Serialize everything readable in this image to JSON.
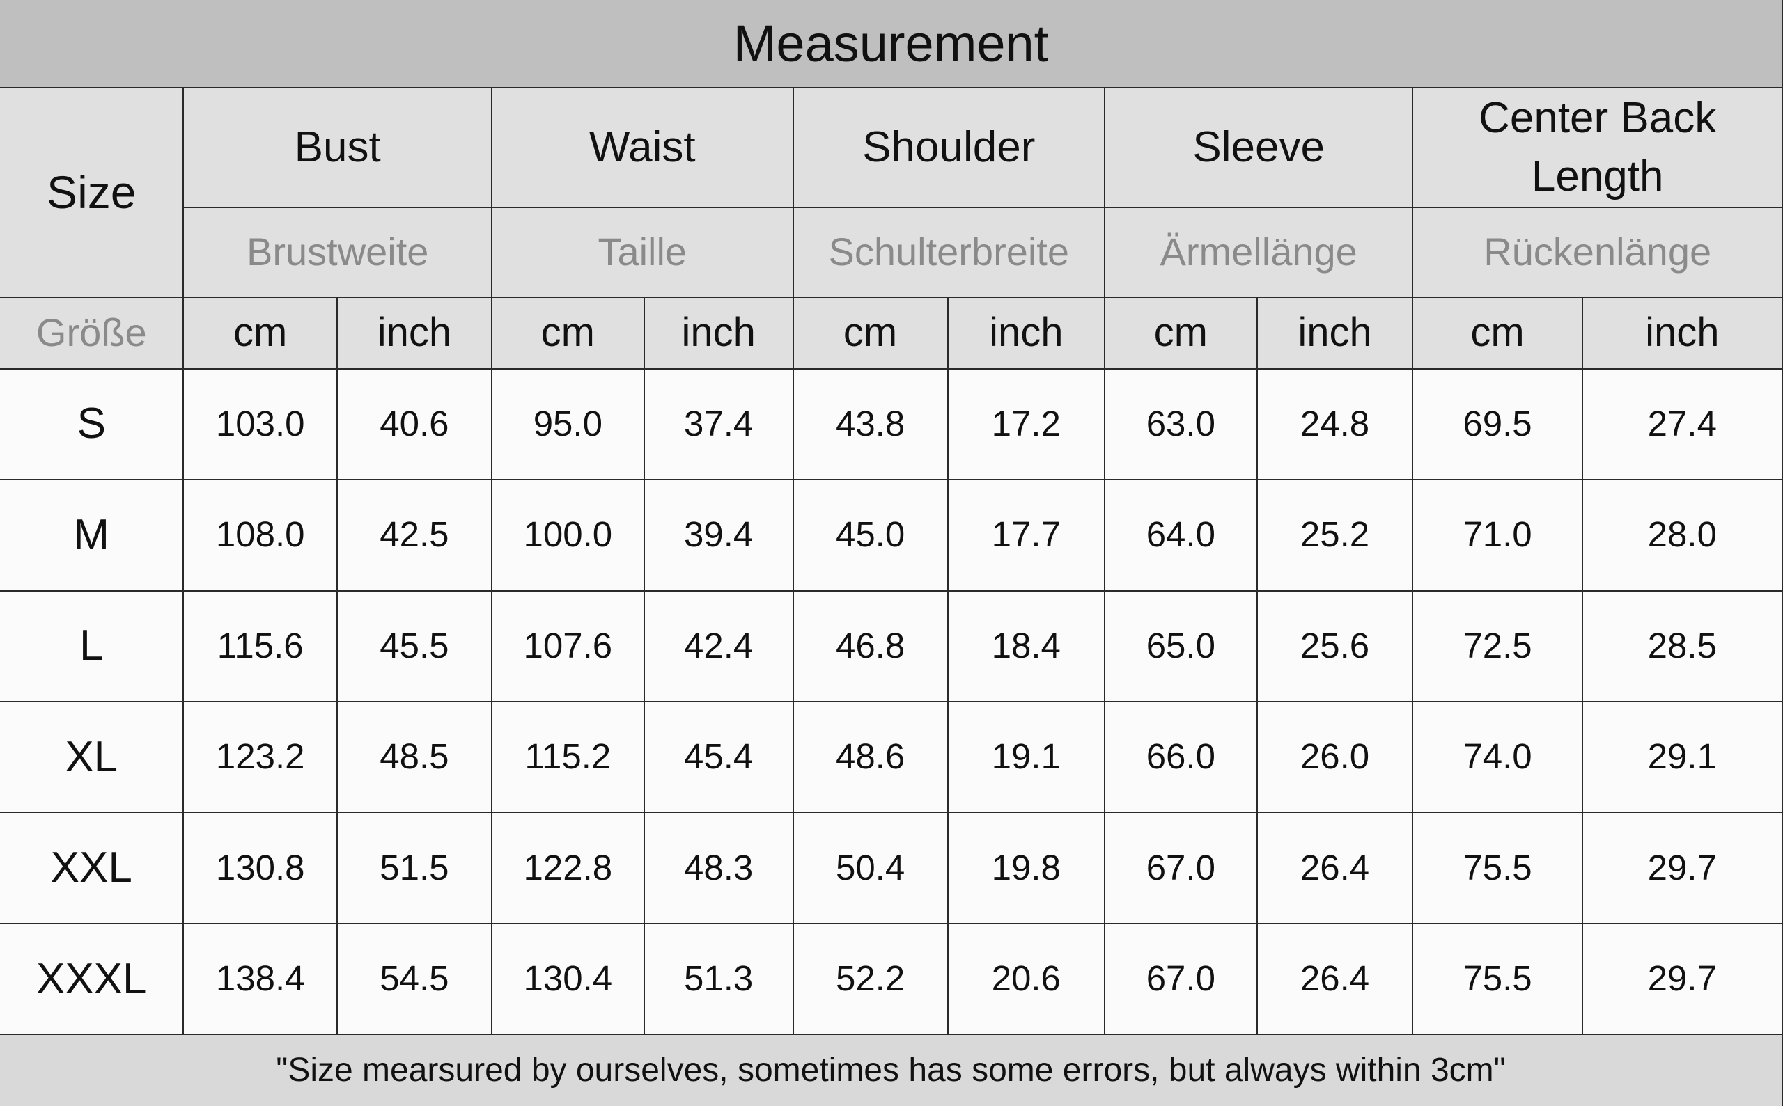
{
  "title": "Measurement",
  "header": {
    "size": "Size",
    "size_de": "Größe",
    "columns": [
      {
        "label": "Bust",
        "label_de": "Brustweite"
      },
      {
        "label": "Waist",
        "label_de": "Taille"
      },
      {
        "label": "Shoulder",
        "label_de": "Schulterbreite"
      },
      {
        "label": "Sleeve",
        "label_de": "Ärmellänge"
      },
      {
        "label": "Center Back Length",
        "label_de": "Rückenlänge"
      }
    ],
    "units": [
      "cm",
      "inch"
    ]
  },
  "rows": [
    [
      "S",
      "103.0",
      "40.6",
      "95.0",
      "37.4",
      "43.8",
      "17.2",
      "63.0",
      "24.8",
      "69.5",
      "27.4"
    ],
    [
      "M",
      "108.0",
      "42.5",
      "100.0",
      "39.4",
      "45.0",
      "17.7",
      "64.0",
      "25.2",
      "71.0",
      "28.0"
    ],
    [
      "L",
      "115.6",
      "45.5",
      "107.6",
      "42.4",
      "46.8",
      "18.4",
      "65.0",
      "25.6",
      "72.5",
      "28.5"
    ],
    [
      "XL",
      "123.2",
      "48.5",
      "115.2",
      "45.4",
      "48.6",
      "19.1",
      "66.0",
      "26.0",
      "74.0",
      "29.1"
    ],
    [
      "XXL",
      "130.8",
      "51.5",
      "122.8",
      "48.3",
      "50.4",
      "19.8",
      "67.0",
      "26.4",
      "75.5",
      "29.7"
    ],
    [
      "XXXL",
      "138.4",
      "54.5",
      "130.4",
      "51.3",
      "52.2",
      "20.6",
      "67.0",
      "26.4",
      "75.5",
      "29.7"
    ]
  ],
  "footer": "\"Size mearsured by ourselves, sometimes has some errors, but always within 3cm\""
}
